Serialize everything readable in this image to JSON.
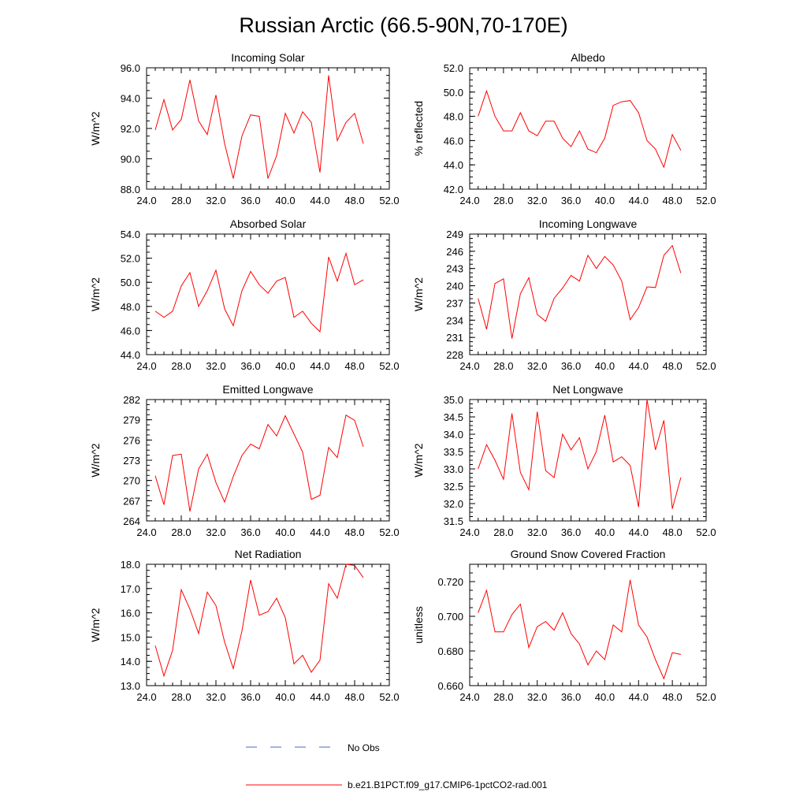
{
  "page": {
    "title": "Russian Arctic (66.5-90N,70-170E)"
  },
  "colors": {
    "model_line": "#ff0000",
    "obs_line": "#4466cc"
  },
  "legend": {
    "obs_label": "No Obs",
    "model_label": "b.e21.B1PCT.f09_g17.CMIP6-1pctCO2-rad.001"
  },
  "chart_data": [
    {
      "type": "line",
      "title": "Incoming Solar",
      "ylabel": "W/m^2",
      "xlim": [
        24,
        52
      ],
      "ylim": [
        88,
        96
      ],
      "x_ticks": [
        24,
        28,
        32,
        36,
        40,
        44,
        48,
        52
      ],
      "x_tick_labels": [
        "24.0",
        "28.0",
        "32.0",
        "36.0",
        "40.0",
        "44.0",
        "48.0",
        "52.0"
      ],
      "y_ticks": [
        88,
        90,
        92,
        94,
        96
      ],
      "y_tick_labels": [
        "88.0",
        "90.0",
        "92.0",
        "94.0",
        "96.0"
      ],
      "x": [
        25,
        26,
        27,
        28,
        29,
        30,
        31,
        32,
        33,
        34,
        35,
        36,
        37,
        38,
        39,
        40,
        41,
        42,
        43,
        44,
        45,
        46,
        47,
        48,
        49
      ],
      "series": [
        {
          "values": [
            91.9,
            93.9,
            91.9,
            92.6,
            95.2,
            92.5,
            91.6,
            94.2,
            91.0,
            88.7,
            91.5,
            92.9,
            92.8,
            88.7,
            90.2,
            93.0,
            91.7,
            93.1,
            92.4,
            89.1,
            95.5,
            91.2,
            92.4,
            93.0,
            91.0
          ]
        }
      ]
    },
    {
      "type": "line",
      "title": "Albedo",
      "ylabel": "% reflected",
      "xlim": [
        24,
        52
      ],
      "ylim": [
        42,
        52
      ],
      "x_ticks": [
        24,
        28,
        32,
        36,
        40,
        44,
        48,
        52
      ],
      "x_tick_labels": [
        "24.0",
        "28.0",
        "32.0",
        "36.0",
        "40.0",
        "44.0",
        "48.0",
        "52.0"
      ],
      "y_ticks": [
        42,
        44,
        46,
        48,
        50,
        52
      ],
      "y_tick_labels": [
        "42.0",
        "44.0",
        "46.0",
        "48.0",
        "50.0",
        "52.0"
      ],
      "x": [
        25,
        26,
        27,
        28,
        29,
        30,
        31,
        32,
        33,
        34,
        35,
        36,
        37,
        38,
        39,
        40,
        41,
        42,
        43,
        44,
        45,
        46,
        47,
        48,
        49
      ],
      "series": [
        {
          "values": [
            48.0,
            50.1,
            48.0,
            46.8,
            46.8,
            48.3,
            46.8,
            46.4,
            47.6,
            47.6,
            46.2,
            45.5,
            46.8,
            45.3,
            45.0,
            46.2,
            48.9,
            49.2,
            49.3,
            48.3,
            46.0,
            45.3,
            43.8,
            46.5,
            45.2
          ]
        }
      ]
    },
    {
      "type": "line",
      "title": "Absorbed Solar",
      "ylabel": "W/m^2",
      "xlim": [
        24,
        52
      ],
      "ylim": [
        44,
        54
      ],
      "x_ticks": [
        24,
        28,
        32,
        36,
        40,
        44,
        48,
        52
      ],
      "x_tick_labels": [
        "24.0",
        "28.0",
        "32.0",
        "36.0",
        "40.0",
        "44.0",
        "48.0",
        "52.0"
      ],
      "y_ticks": [
        44,
        46,
        48,
        50,
        52,
        54
      ],
      "y_tick_labels": [
        "44.0",
        "46.0",
        "48.0",
        "50.0",
        "52.0",
        "54.0"
      ],
      "x": [
        25,
        26,
        27,
        28,
        29,
        30,
        31,
        32,
        33,
        34,
        35,
        36,
        37,
        38,
        39,
        40,
        41,
        42,
        43,
        44,
        45,
        46,
        47,
        48,
        49
      ],
      "series": [
        {
          "values": [
            47.6,
            47.1,
            47.6,
            49.7,
            50.8,
            48.0,
            49.3,
            51.0,
            47.8,
            46.4,
            49.3,
            50.9,
            49.8,
            49.1,
            50.1,
            50.4,
            47.1,
            47.6,
            46.6,
            45.9,
            52.1,
            50.1,
            52.4,
            49.8,
            50.2
          ]
        }
      ]
    },
    {
      "type": "line",
      "title": "Incoming Longwave",
      "ylabel": "W/m^2",
      "xlim": [
        24,
        52
      ],
      "ylim": [
        228,
        249
      ],
      "x_ticks": [
        24,
        28,
        32,
        36,
        40,
        44,
        48,
        52
      ],
      "x_tick_labels": [
        "24.0",
        "28.0",
        "32.0",
        "36.0",
        "40.0",
        "44.0",
        "48.0",
        "52.0"
      ],
      "y_ticks": [
        228,
        231,
        234,
        237,
        240,
        243,
        246,
        249
      ],
      "y_tick_labels": [
        "228",
        "231",
        "234",
        "237",
        "240",
        "243",
        "246",
        "249"
      ],
      "x": [
        25,
        26,
        27,
        28,
        29,
        30,
        31,
        32,
        33,
        34,
        35,
        36,
        37,
        38,
        39,
        40,
        41,
        42,
        43,
        44,
        45,
        46,
        47,
        48,
        49
      ],
      "series": [
        {
          "values": [
            237.8,
            232.4,
            240.4,
            241.2,
            230.8,
            238.6,
            241.4,
            235.0,
            233.8,
            237.8,
            239.6,
            241.8,
            240.8,
            245.3,
            243.0,
            245.1,
            243.6,
            240.8,
            234.1,
            236.2,
            239.8,
            239.7,
            245.3,
            247.0,
            242.2
          ]
        }
      ]
    },
    {
      "type": "line",
      "title": "Emitted Longwave",
      "ylabel": "W/m^2",
      "xlim": [
        24,
        52
      ],
      "ylim": [
        264,
        282
      ],
      "x_ticks": [
        24,
        28,
        32,
        36,
        40,
        44,
        48,
        52
      ],
      "x_tick_labels": [
        "24.0",
        "28.0",
        "32.0",
        "36.0",
        "40.0",
        "44.0",
        "48.0",
        "52.0"
      ],
      "y_ticks": [
        264,
        267,
        270,
        273,
        276,
        279,
        282
      ],
      "y_tick_labels": [
        "264",
        "267",
        "270",
        "273",
        "276",
        "279",
        "282"
      ],
      "x": [
        25,
        26,
        27,
        28,
        29,
        30,
        31,
        32,
        33,
        34,
        35,
        36,
        37,
        38,
        39,
        40,
        41,
        42,
        43,
        44,
        45,
        46,
        47,
        48,
        49
      ],
      "series": [
        {
          "values": [
            270.7,
            266.4,
            273.7,
            273.9,
            265.4,
            271.7,
            273.9,
            269.7,
            266.8,
            270.6,
            273.7,
            275.4,
            274.7,
            278.3,
            276.6,
            279.6,
            276.9,
            274.2,
            267.2,
            267.8,
            274.9,
            273.4,
            279.7,
            278.9,
            275.0
          ]
        }
      ]
    },
    {
      "type": "line",
      "title": "Net Longwave",
      "ylabel": "W/m^2",
      "xlim": [
        24,
        52
      ],
      "ylim": [
        31.5,
        35.0
      ],
      "x_ticks": [
        24,
        28,
        32,
        36,
        40,
        44,
        48,
        52
      ],
      "x_tick_labels": [
        "24.0",
        "28.0",
        "32.0",
        "36.0",
        "40.0",
        "44.0",
        "48.0",
        "52.0"
      ],
      "y_ticks": [
        31.5,
        32.0,
        32.5,
        33.0,
        33.5,
        34.0,
        34.5,
        35.0
      ],
      "y_tick_labels": [
        "31.5",
        "32.0",
        "32.5",
        "33.0",
        "33.5",
        "34.0",
        "34.5",
        "35.0"
      ],
      "x": [
        25,
        26,
        27,
        28,
        29,
        30,
        31,
        32,
        33,
        34,
        35,
        36,
        37,
        38,
        39,
        40,
        41,
        42,
        43,
        44,
        45,
        46,
        47,
        48,
        49
      ],
      "series": [
        {
          "values": [
            33.0,
            33.7,
            33.25,
            32.7,
            34.6,
            32.9,
            32.4,
            34.65,
            32.95,
            32.75,
            34.0,
            33.55,
            33.9,
            33.0,
            33.5,
            34.55,
            33.2,
            33.35,
            33.1,
            31.9,
            35.0,
            33.55,
            34.4,
            31.85,
            32.75
          ]
        }
      ]
    },
    {
      "type": "line",
      "title": "Net Radiation",
      "ylabel": "W/m^2",
      "xlim": [
        24,
        52
      ],
      "ylim": [
        13,
        18
      ],
      "x_ticks": [
        24,
        28,
        32,
        36,
        40,
        44,
        48,
        52
      ],
      "x_tick_labels": [
        "24.0",
        "28.0",
        "32.0",
        "36.0",
        "40.0",
        "44.0",
        "48.0",
        "52.0"
      ],
      "y_ticks": [
        13,
        14,
        15,
        16,
        17,
        18
      ],
      "y_tick_labels": [
        "13.0",
        "14.0",
        "15.0",
        "16.0",
        "17.0",
        "18.0"
      ],
      "x": [
        25,
        26,
        27,
        28,
        29,
        30,
        31,
        32,
        33,
        34,
        35,
        36,
        37,
        38,
        39,
        40,
        41,
        42,
        43,
        44,
        45,
        46,
        47,
        48,
        49
      ],
      "series": [
        {
          "values": [
            14.65,
            13.4,
            14.45,
            16.95,
            16.15,
            15.15,
            16.85,
            16.3,
            14.8,
            13.7,
            15.25,
            17.35,
            15.9,
            16.05,
            16.6,
            15.8,
            13.9,
            14.25,
            13.55,
            14.05,
            17.2,
            16.6,
            18.0,
            17.95,
            17.45
          ]
        }
      ]
    },
    {
      "type": "line",
      "title": "Ground Snow Covered Fraction",
      "ylabel": "unitless",
      "xlim": [
        24,
        52
      ],
      "ylim": [
        0.66,
        0.73
      ],
      "x_ticks": [
        24,
        28,
        32,
        36,
        40,
        44,
        48,
        52
      ],
      "x_tick_labels": [
        "24.0",
        "28.0",
        "32.0",
        "36.0",
        "40.0",
        "44.0",
        "48.0",
        "52.0"
      ],
      "y_ticks": [
        0.66,
        0.68,
        0.7,
        0.72
      ],
      "y_tick_labels": [
        "0.660",
        "0.680",
        "0.700",
        "0.720"
      ],
      "x": [
        25,
        26,
        27,
        28,
        29,
        30,
        31,
        32,
        33,
        34,
        35,
        36,
        37,
        38,
        39,
        40,
        41,
        42,
        43,
        44,
        45,
        46,
        47,
        48,
        49
      ],
      "series": [
        {
          "values": [
            0.702,
            0.715,
            0.691,
            0.691,
            0.701,
            0.707,
            0.682,
            0.694,
            0.697,
            0.692,
            0.702,
            0.69,
            0.684,
            0.672,
            0.68,
            0.675,
            0.695,
            0.691,
            0.721,
            0.695,
            0.688,
            0.675,
            0.664,
            0.679,
            0.678
          ]
        }
      ]
    }
  ]
}
